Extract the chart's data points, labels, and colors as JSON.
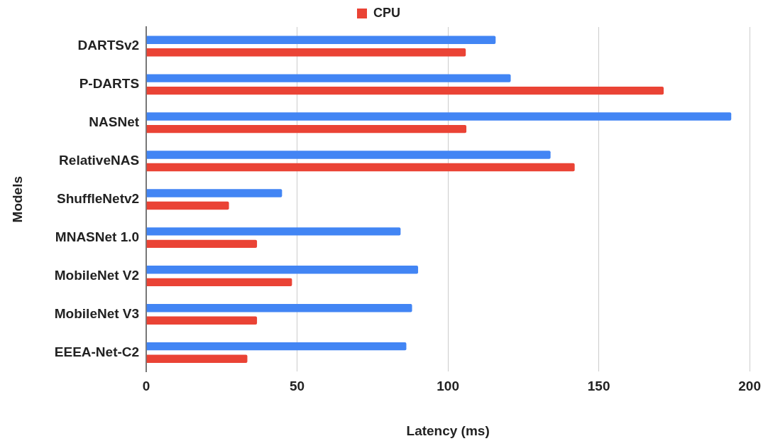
{
  "chart_data": {
    "type": "bar",
    "orientation": "horizontal",
    "xlabel": "Latency (ms)",
    "ylabel": "Models",
    "categories": [
      "DARTSv2",
      "P-DARTS",
      "NASNet",
      "RelativeNAS",
      "ShuffleNetv2",
      "MNASNet 1.0",
      "MobileNet V2",
      "MobileNet V3",
      "EEEA-Net-C2"
    ],
    "series": [
      {
        "color": "#4285f4",
        "values": [
          115.8,
          120.8,
          193.9,
          134,
          45,
          84.3,
          90.1,
          88.1,
          86.2
        ]
      },
      {
        "name": "CPU",
        "color": "#ea4335",
        "values": [
          105.9,
          171.5,
          106.1,
          142,
          27.4,
          36.7,
          48.3,
          36.7,
          33.5
        ]
      }
    ],
    "xlim": [
      0,
      200
    ],
    "xticks": [
      0,
      50,
      100,
      150,
      200
    ],
    "grid": "x",
    "legend": "top"
  }
}
